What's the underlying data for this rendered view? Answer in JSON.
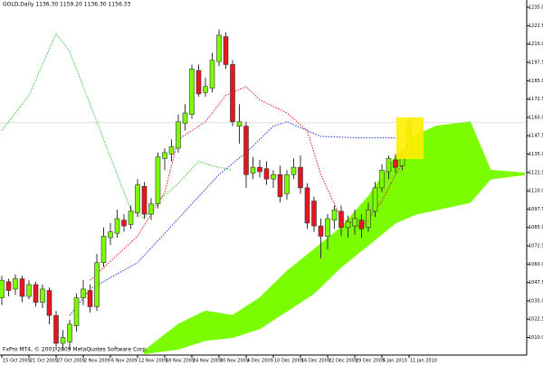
{
  "chart_data": {
    "type": "candlestick",
    "title": "GOLD,Daily 1136.30 1159.20 1136.30 1156.33",
    "footer": "FxPro MT4, © 2001-2009 MetaQuotes Software Corp.",
    "categories": [
      "15 Oct 2009",
      null,
      null,
      null,
      "21 Oct 2009",
      null,
      null,
      null,
      "27 Oct 2009",
      null,
      null,
      null,
      "2 Nov 2009",
      null,
      null,
      null,
      "6 Nov 2009",
      null,
      null,
      null,
      "12 Nov 2009",
      null,
      null,
      null,
      "18 Nov 2009",
      null,
      null,
      null,
      "24 Nov 2009",
      null,
      null,
      null,
      "30 Nov 2009",
      null,
      null,
      null,
      "4 Dec 2009",
      null,
      null,
      null,
      "10 Dec 2009",
      null,
      null,
      null,
      "16 Dec 2009",
      null,
      null,
      null,
      "22 Dec 2009",
      null,
      null,
      null,
      "29 Dec 2009",
      null,
      null,
      null,
      "5 Jan 2010",
      null,
      null,
      null,
      "11 Jan 2010"
    ],
    "open": [
      1037,
      1048,
      1043,
      1050,
      1038,
      1046,
      1034,
      1042,
      1025,
      1006,
      1007,
      1018,
      1037,
      1042,
      1031,
      1061,
      1078,
      1081,
      1090,
      1087,
      1095,
      1113,
      1094,
      1101,
      1132,
      1135,
      1139,
      1156,
      1162,
      1192,
      1177,
      1180,
      1198,
      1215,
      1196,
      1154,
      1154,
      1122,
      1126,
      1125,
      1118,
      1121,
      1108,
      1121,
      1126,
      1112,
      1103,
      1086,
      1079,
      1090,
      1096,
      1085,
      1086,
      1090,
      1085,
      1096,
      1112,
      1123,
      1131,
      1127,
      1136.3
    ],
    "high": [
      1052,
      1050,
      1053,
      1052,
      1049,
      1048,
      1046,
      1044,
      1028,
      1015,
      1022,
      1040,
      1049,
      1046,
      1067,
      1085,
      1088,
      1097,
      1094,
      1100,
      1118,
      1116,
      1105,
      1136,
      1139,
      1145,
      1162,
      1169,
      1196,
      1196,
      1187,
      1204,
      1220,
      1218,
      1199,
      1169,
      1157,
      1133,
      1131,
      1130,
      1124,
      1127,
      1124,
      1132,
      1134,
      1115,
      1106,
      1091,
      1094,
      1100,
      1100,
      1093,
      1097,
      1094,
      1102,
      1116,
      1128,
      1134,
      1135,
      1138,
      1159.2
    ],
    "low": [
      1032,
      1038,
      1039,
      1034,
      1036,
      1031,
      1030,
      1019,
      1002,
      1001,
      1002,
      1014,
      1032,
      1027,
      1028,
      1058,
      1073,
      1078,
      1082,
      1084,
      1092,
      1091,
      1090,
      1098,
      1124,
      1130,
      1136,
      1151,
      1159,
      1174,
      1174,
      1177,
      1195,
      1193,
      1154,
      1142,
      1112,
      1118,
      1119,
      1114,
      1112,
      1102,
      1104,
      1118,
      1108,
      1084,
      1082,
      1064,
      1070,
      1084,
      1079,
      1078,
      1080,
      1078,
      1082,
      1092,
      1109,
      1118,
      1122,
      1124,
      1136.3
    ],
    "close": [
      1049,
      1042,
      1050,
      1038,
      1046,
      1034,
      1043,
      1025,
      1006,
      1010,
      1019,
      1037,
      1043,
      1031,
      1061,
      1079,
      1082,
      1091,
      1086,
      1096,
      1114,
      1094,
      1101,
      1133,
      1136,
      1140,
      1157,
      1163,
      1193,
      1176,
      1181,
      1199,
      1216,
      1196,
      1157,
      1157,
      1121,
      1126,
      1123,
      1118,
      1121,
      1106,
      1121,
      1126,
      1112,
      1088,
      1086,
      1079,
      1091,
      1097,
      1085,
      1089,
      1091,
      1084,
      1097,
      1112,
      1124,
      1132,
      1126,
      1134,
      1156.33
    ],
    "up_color": "#7cfc00",
    "down_color": "#e8141e",
    "ylim": [
      998,
      1240
    ],
    "yticks": [
      {
        "value": 1235,
        "label": "1235.00"
      },
      {
        "value": 1222.5,
        "label": "1222.50"
      },
      {
        "value": 1210,
        "label": "1210.00"
      },
      {
        "value": 1197.5,
        "label": "1197.50"
      },
      {
        "value": 1185,
        "label": "1185.00"
      },
      {
        "value": 1172.5,
        "label": "1172.50"
      },
      {
        "value": 1160,
        "label": "1160.00"
      },
      {
        "value": 1147.5,
        "label": "1147.50"
      },
      {
        "value": 1135,
        "label": "1135.00"
      },
      {
        "value": 1122.5,
        "label": "1122.50"
      },
      {
        "value": 1110,
        "label": "1110.00"
      },
      {
        "value": 1097.5,
        "label": "1097.50"
      },
      {
        "value": 1085,
        "label": "1085.00"
      },
      {
        "value": 1072.5,
        "label": "1072.50"
      },
      {
        "value": 1060,
        "label": "1060.00"
      },
      {
        "value": 1047.5,
        "label": "1047.50"
      },
      {
        "value": 1035,
        "label": "1035.00"
      },
      {
        "value": 1022.5,
        "label": "1022.50"
      },
      {
        "value": 1010,
        "label": "1010.00"
      }
    ],
    "grid": false,
    "cloud": {
      "color": "#7cfc00",
      "x": [
        21,
        26,
        30,
        34,
        38,
        42,
        46,
        50,
        54,
        58,
        61,
        64,
        69,
        72,
        77
      ],
      "span_a": [
        1001,
        1019,
        1028,
        1025,
        1037,
        1055,
        1070,
        1085,
        1106,
        1133,
        1148,
        1154,
        1157,
        1124,
        1122
      ],
      "span_b": [
        999,
        1002,
        1008,
        1010,
        1016,
        1028,
        1040,
        1058,
        1073,
        1088,
        1094,
        1097,
        1102,
        1118,
        1121
      ]
    },
    "lines": [
      {
        "color": "#e8141e",
        "x": [
          13,
          20,
          24,
          26,
          30,
          33,
          36,
          38,
          42,
          45,
          47,
          50,
          53,
          56,
          58,
          60
        ],
        "values": [
          1049,
          1079,
          1109,
          1145,
          1157,
          1175,
          1181,
          1172,
          1163,
          1151,
          1121,
          1091,
          1085,
          1103,
          1121,
          1136
        ]
      },
      {
        "color": "#1e32e6",
        "x": [
          10,
          13,
          20,
          26,
          32,
          36,
          40,
          42,
          47,
          53,
          60
        ],
        "values": [
          1025,
          1043,
          1061,
          1091,
          1121,
          1136,
          1154,
          1157,
          1147,
          1146,
          1146
        ]
      },
      {
        "color": "#32c832",
        "x": [
          0,
          4,
          8,
          10,
          13,
          15,
          17,
          19,
          21,
          23,
          26,
          29,
          31,
          34
        ],
        "values": [
          1151,
          1175,
          1217,
          1205,
          1169,
          1145,
          1121,
          1097,
          1091,
          1103,
          1115,
          1130,
          1127,
          1124
        ]
      }
    ]
  }
}
